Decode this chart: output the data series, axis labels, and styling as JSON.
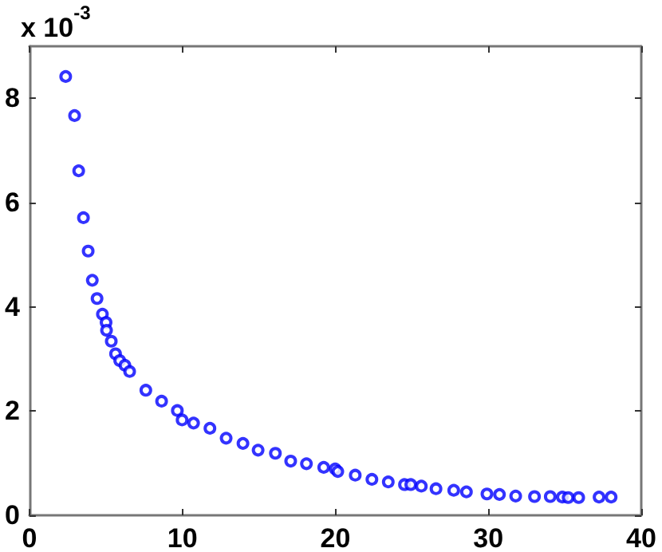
{
  "chart_data": {
    "type": "scatter",
    "marker": "circle",
    "grid": false,
    "annotations": [
      "x 10$^{-3}$"
    ],
    "xlim": [
      0,
      40
    ],
    "xticks": [
      0,
      10,
      20,
      30,
      40
    ],
    "ylim": [
      0,
      9
    ],
    "yticks": [
      0,
      2,
      4,
      6,
      8
    ],
    "series": [
      {
        "color": "#0000ff",
        "x": [
          2.37,
          2.95,
          3.22,
          3.53,
          3.84,
          4.11,
          4.42,
          4.77,
          5.01,
          5.04,
          5.35,
          5.63,
          5.9,
          6.24,
          6.55,
          7.61,
          8.64,
          9.67,
          9.98,
          10.73,
          11.8,
          12.86,
          13.96,
          14.95,
          16.08,
          17.08,
          18.11,
          19.24,
          19.99,
          20.16,
          21.3,
          22.39,
          23.46,
          24.52,
          24.93,
          25.62,
          26.58,
          27.74,
          28.57,
          29.91,
          30.73,
          31.79,
          33.02,
          34.05,
          34.84,
          35.22,
          35.91,
          37.24,
          38.03
        ],
        "values": [
          8.42,
          7.67,
          6.61,
          5.71,
          5.07,
          4.51,
          4.16,
          3.86,
          3.7,
          3.55,
          3.34,
          3.1,
          2.97,
          2.88,
          2.76,
          2.4,
          2.19,
          2.01,
          1.83,
          1.77,
          1.67,
          1.48,
          1.38,
          1.25,
          1.19,
          1.04,
          0.99,
          0.92,
          0.89,
          0.84,
          0.77,
          0.69,
          0.64,
          0.59,
          0.59,
          0.56,
          0.51,
          0.48,
          0.45,
          0.41,
          0.4,
          0.37,
          0.36,
          0.36,
          0.35,
          0.34,
          0.34,
          0.35,
          0.35
        ]
      }
    ]
  }
}
